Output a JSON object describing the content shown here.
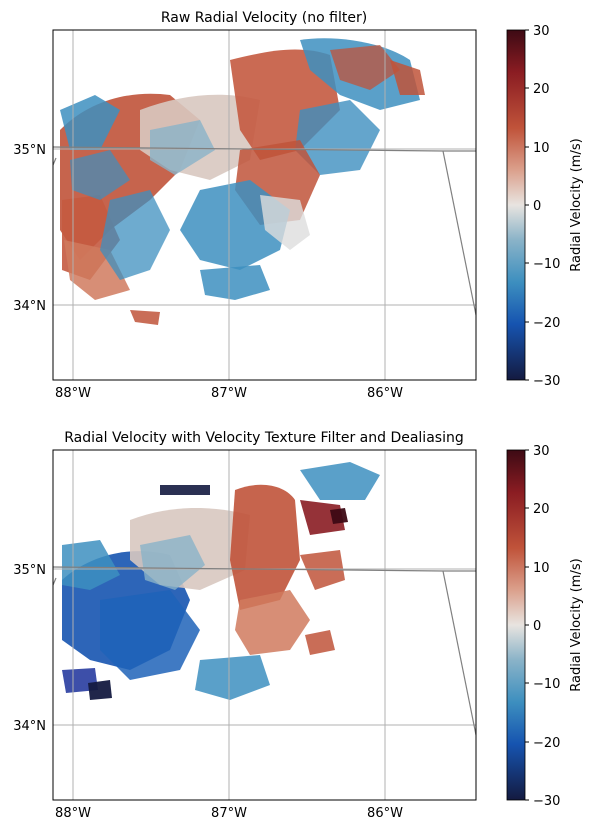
{
  "figure": {
    "panels": [
      {
        "title": "Raw Radial Velocity (no filter)",
        "lon_ticks": [
          "88°W",
          "87°W",
          "86°W"
        ],
        "lat_ticks": [
          "35°N",
          "34°N"
        ],
        "colorbar": {
          "label": "Radial Velocity (m/s)",
          "ticks": [
            "30",
            "20",
            "10",
            "0",
            "−10",
            "−20",
            "−30"
          ],
          "vmin": -30,
          "vmax": 30
        }
      },
      {
        "title": "Radial Velocity with Velocity Texture Filter and Dealiasing",
        "lon_ticks": [
          "88°W",
          "87°W",
          "86°W"
        ],
        "lat_ticks": [
          "35°N",
          "34°N"
        ],
        "colorbar": {
          "label": "Radial Velocity (m/s)",
          "ticks": [
            "30",
            "20",
            "10",
            "0",
            "−10",
            "−20",
            "−30"
          ],
          "vmin": -30,
          "vmax": 30
        }
      }
    ],
    "colors": {
      "strong_outbound": "#3d0a14",
      "outbound": "#c0533a",
      "near_zero": "#e8e4e0",
      "inbound": "#3d8fbf",
      "strong_inbound": "#141a40",
      "state_border": "#808080",
      "gridline": "#b0b0b0"
    }
  }
}
